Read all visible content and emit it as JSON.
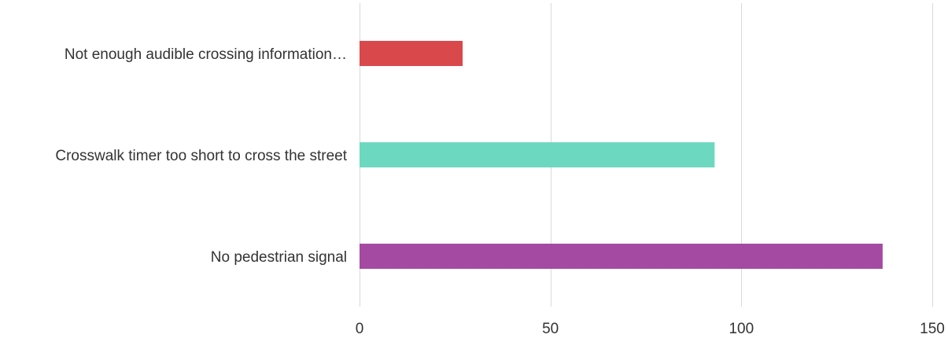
{
  "chart_data": {
    "type": "bar",
    "orientation": "horizontal",
    "title": "",
    "xlabel": "",
    "ylabel": "",
    "categories": [
      "Not enough audible crossing information…",
      "Crosswalk timer too short to cross the street",
      "No pedestrian signal"
    ],
    "values": [
      27,
      93,
      137
    ],
    "colors": [
      "#d9494c",
      "#6dd8c0",
      "#a44aa2"
    ],
    "xlim": [
      0,
      150
    ],
    "xticks": [
      0,
      50,
      100,
      150
    ],
    "grid": true,
    "legend": "none"
  }
}
